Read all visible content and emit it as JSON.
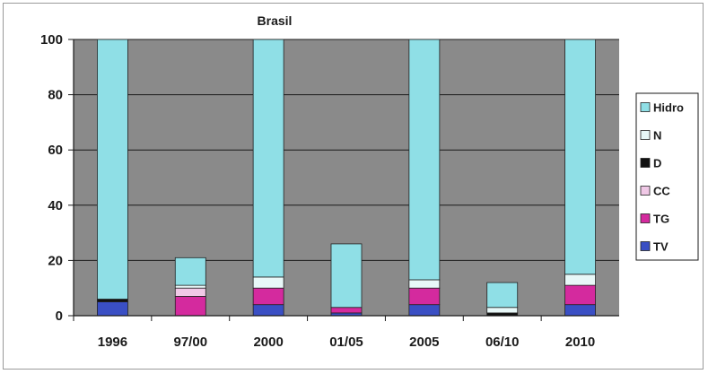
{
  "chart_data": {
    "type": "bar",
    "stacked": true,
    "title": "Brasil",
    "categories": [
      "1996",
      "97/00",
      "2000",
      "01/05",
      "2005",
      "06/10",
      "2010"
    ],
    "ylim": [
      0,
      100
    ],
    "yticks": [
      0,
      20,
      40,
      60,
      80,
      100
    ],
    "grid": true,
    "legend_position": "right",
    "plot_background": "#8a8a8a",
    "series": [
      {
        "name": "TV",
        "color": "#3a4fc4",
        "values": [
          5,
          0,
          4,
          1,
          4,
          0,
          4
        ]
      },
      {
        "name": "TG",
        "color": "#d42a9e",
        "values": [
          0,
          7,
          6,
          2,
          6,
          0,
          7
        ]
      },
      {
        "name": "CC",
        "color": "#f0c8e6",
        "values": [
          0,
          3,
          0,
          0,
          0,
          0,
          0
        ]
      },
      {
        "name": "D",
        "color": "#111111",
        "values": [
          1,
          0,
          0,
          0,
          0,
          1,
          0
        ]
      },
      {
        "name": "N",
        "color": "#e8f8f8",
        "values": [
          0,
          1,
          4,
          0,
          3,
          2,
          4
        ]
      },
      {
        "name": "Hidro",
        "color": "#8fdfe6",
        "values": [
          94,
          10,
          86,
          23,
          87,
          9,
          85
        ]
      }
    ]
  }
}
